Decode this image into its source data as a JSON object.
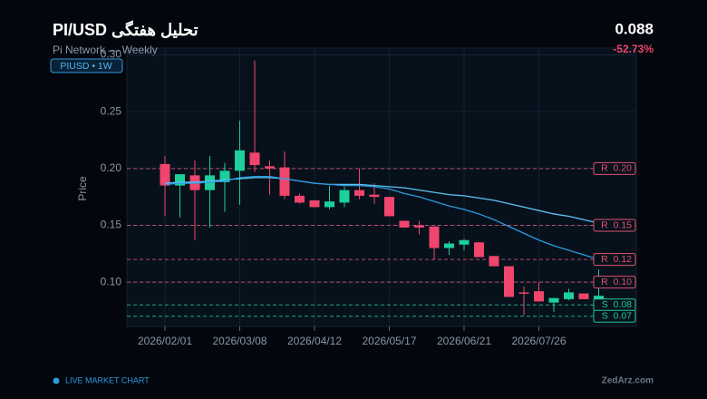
{
  "header": {
    "title": "PI/USD تحلیل هفتگی",
    "subtitle": "Pi Network — Weekly",
    "badge": "PIUSD  •  1W",
    "price": "0.088",
    "change": "-52.73%"
  },
  "footer": {
    "live": "LIVE MARKET CHART",
    "brand": "ZedArz.com"
  },
  "chart_data": {
    "type": "candlestick",
    "y_label": "Price",
    "categories": [
      "2026/02/01",
      null,
      null,
      null,
      null,
      "2026/03/08",
      null,
      null,
      null,
      null,
      "2026/04/12",
      null,
      null,
      null,
      null,
      "2026/05/17",
      null,
      null,
      null,
      null,
      "2026/06/21",
      null,
      null,
      null,
      null,
      "2026/07/26",
      null,
      null,
      null,
      null
    ],
    "open": [
      0.204,
      0.185,
      0.194,
      0.181,
      0.188,
      0.198,
      0.214,
      0.202,
      0.201,
      0.176,
      0.172,
      0.166,
      0.17,
      0.181,
      0.177,
      0.175,
      0.154,
      0.15,
      0.149,
      0.13,
      0.133,
      0.135,
      0.123,
      0.114,
      0.091,
      0.092,
      0.082,
      0.085,
      0.09,
      0.085
    ],
    "high": [
      0.211,
      0.195,
      0.207,
      0.211,
      0.205,
      0.242,
      0.295,
      0.207,
      0.215,
      0.178,
      0.172,
      0.185,
      0.184,
      0.2,
      0.187,
      0.175,
      0.154,
      0.154,
      0.149,
      0.136,
      0.138,
      0.135,
      0.123,
      0.114,
      0.096,
      0.1,
      0.086,
      0.094,
      0.09,
      0.111
    ],
    "low": [
      0.158,
      0.157,
      0.137,
      0.148,
      0.162,
      0.168,
      0.197,
      0.177,
      0.173,
      0.169,
      0.166,
      0.164,
      0.166,
      0.173,
      0.169,
      0.158,
      0.148,
      0.142,
      0.12,
      0.124,
      0.128,
      0.122,
      0.114,
      0.087,
      0.071,
      0.083,
      0.074,
      0.084,
      0.085,
      0.084
    ],
    "close": [
      0.185,
      0.195,
      0.181,
      0.194,
      0.198,
      0.216,
      0.203,
      0.2,
      0.176,
      0.17,
      0.166,
      0.171,
      0.181,
      0.176,
      0.175,
      0.158,
      0.148,
      0.148,
      0.13,
      0.134,
      0.137,
      0.122,
      0.114,
      0.087,
      0.09,
      0.083,
      0.086,
      0.091,
      0.085,
      0.088
    ],
    "up_color": "#1ccf9b",
    "down_color": "#f0456d",
    "series": [
      {
        "color": "#5cc4f2",
        "values": [
          0.187,
          0.188,
          0.188,
          0.189,
          0.19,
          0.191,
          0.192,
          0.192,
          0.191,
          0.189,
          0.187,
          0.186,
          0.186,
          0.186,
          0.185,
          0.184,
          0.183,
          0.181,
          0.179,
          0.177,
          0.176,
          0.174,
          0.172,
          0.169,
          0.166,
          0.163,
          0.16,
          0.158,
          0.155,
          0.152
        ]
      },
      {
        "color": "#2d9be0",
        "values": [
          0.186,
          0.187,
          0.187,
          0.188,
          0.189,
          0.192,
          0.193,
          0.193,
          0.191,
          0.189,
          0.187,
          0.186,
          0.185,
          0.185,
          0.184,
          0.182,
          0.178,
          0.175,
          0.171,
          0.167,
          0.164,
          0.16,
          0.155,
          0.149,
          0.143,
          0.137,
          0.132,
          0.128,
          0.124,
          0.12
        ]
      }
    ],
    "levels": [
      {
        "value": 0.2,
        "label": "R  0.20",
        "color": "#e0526f"
      },
      {
        "value": 0.15,
        "label": "R  0.15",
        "color": "#e0526f"
      },
      {
        "value": 0.12,
        "label": "R  0.12",
        "color": "#e0526f"
      },
      {
        "value": 0.1,
        "label": "R  0.10",
        "color": "#e0526f"
      },
      {
        "value": 0.08,
        "label": "S  0.08",
        "color": "#22c896"
      },
      {
        "value": 0.07,
        "label": "S  0.07",
        "color": "#22c896"
      }
    ],
    "ylim": [
      0.061,
      0.306
    ],
    "yticks": [
      {
        "value": 0.1,
        "label": "0.10"
      },
      0.15,
      {
        "value": 0.2,
        "label": "0.20"
      },
      0.25,
      {
        "value": 0.3,
        "label": "0.30"
      }
    ],
    "grid": true
  }
}
